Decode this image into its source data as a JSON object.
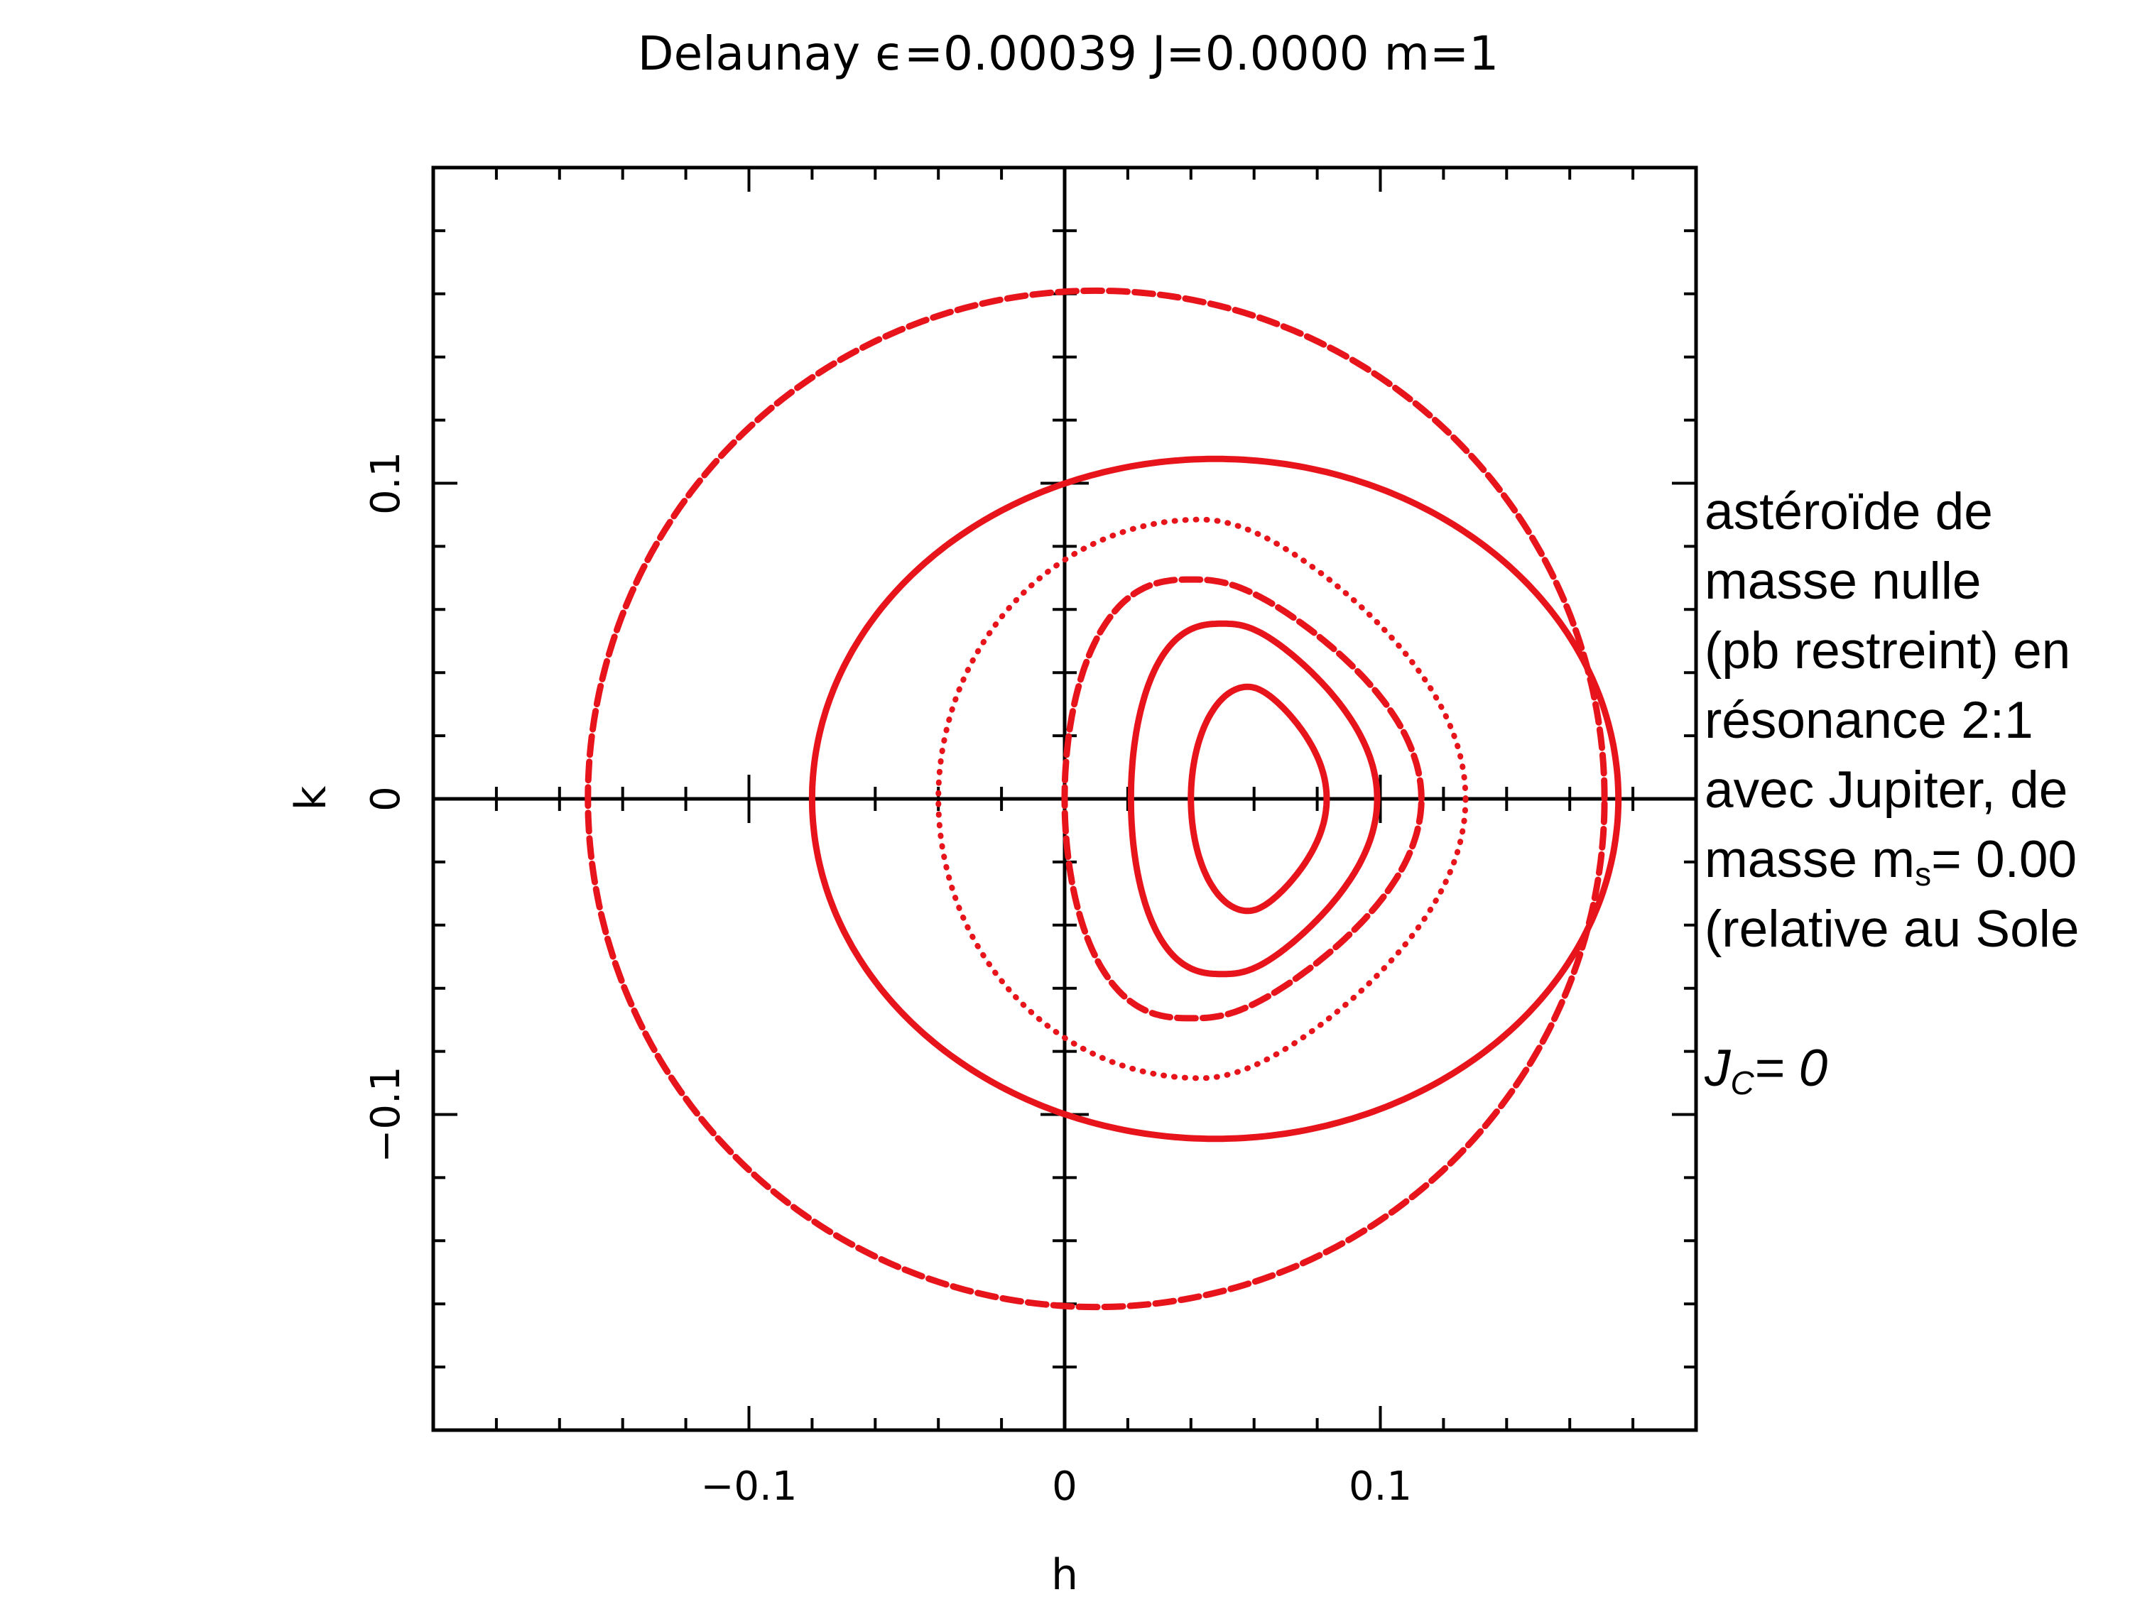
{
  "chart_data": {
    "type": "scatter",
    "title": "Delaunay ϵ=0.00039  J=0.0000  m=1",
    "xlabel": "h",
    "ylabel": "k",
    "xlim": [
      -0.2,
      0.2
    ],
    "ylim": [
      -0.2,
      0.2
    ],
    "x_ticks": [
      {
        "value": -0.1,
        "label": "−0.1"
      },
      {
        "value": 0,
        "label": "0"
      },
      {
        "value": 0.1,
        "label": "0.1"
      }
    ],
    "y_ticks": [
      {
        "value": 0.1,
        "label": "0.1"
      },
      {
        "value": 0,
        "label": "0"
      },
      {
        "value": -0.1,
        "label": "−0.1"
      }
    ],
    "minor_tick_step": 0.02,
    "color": "#e8141c",
    "axis_color": "#000000",
    "curves": [
      {
        "kind": "circle",
        "cx": 0.01,
        "cy": 0,
        "rx": 0.161,
        "ry": 0.161,
        "style": "dashed"
      },
      {
        "kind": "circle",
        "cx": 0.0477,
        "cy": 0,
        "rx": 0.1277,
        "ry": 0.1077,
        "style": "solid"
      },
      {
        "kind": "shape",
        "xmin": -0.04,
        "xmax": 0.127,
        "center": 0.043,
        "ry": 0.0885,
        "roundness": 2.0,
        "lead": 0.35,
        "style": "dotted"
      },
      {
        "kind": "shape",
        "xmin": 0.0,
        "xmax": 0.113,
        "center": 0.04,
        "ry": 0.0695,
        "roundness": 2.6,
        "lead": 0.45,
        "style": "dashed"
      },
      {
        "kind": "shape",
        "xmin": 0.021,
        "xmax": 0.099,
        "center": 0.05,
        "ry": 0.0555,
        "roundness": 2.6,
        "lead": 0.45,
        "style": "solid"
      },
      {
        "kind": "shape",
        "xmin": 0.04,
        "xmax": 0.083,
        "center": 0.058,
        "ry": 0.0355,
        "roundness": 2.0,
        "lead": 0.35,
        "style": "solid"
      }
    ]
  },
  "annotation": {
    "lines": [
      "astéroïde de",
      "masse nulle",
      "(pb restreint) en",
      "résonance 2:1",
      "avec Jupiter, de"
    ],
    "mass_prefix": "masse m",
    "mass_subscript": "s",
    "mass_value": "= 0.00",
    "relative": "(relative au Sole",
    "jc_symbol": "J",
    "jc_subscript": "C",
    "jc_value": "= 0"
  }
}
